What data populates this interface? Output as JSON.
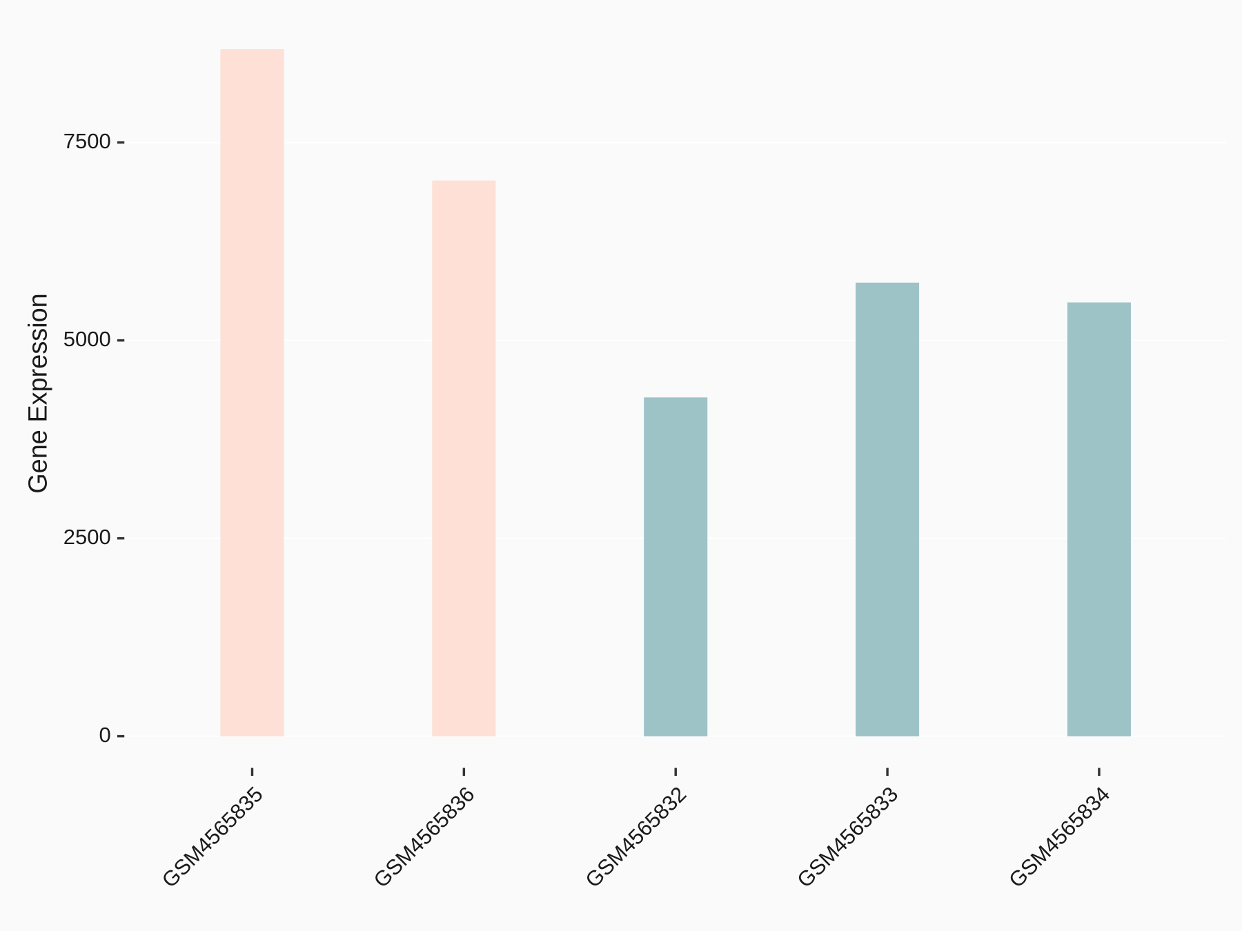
{
  "chart_data": {
    "type": "bar",
    "y_label": "Gene Expression",
    "categories": [
      "GSM4565835",
      "GSM4565836",
      "GSM4565832",
      "GSM4565833",
      "GSM4565834"
    ],
    "values": [
      8680,
      7020,
      4280,
      5730,
      5480
    ],
    "colors": [
      "#fee0d6",
      "#fee0d6",
      "#9dc3c7",
      "#9dc3c7",
      "#9dc3c7"
    ],
    "ylim": [
      -450,
      8750
    ],
    "yticks": [
      0,
      2500,
      5000,
      7500
    ],
    "grid": true
  }
}
